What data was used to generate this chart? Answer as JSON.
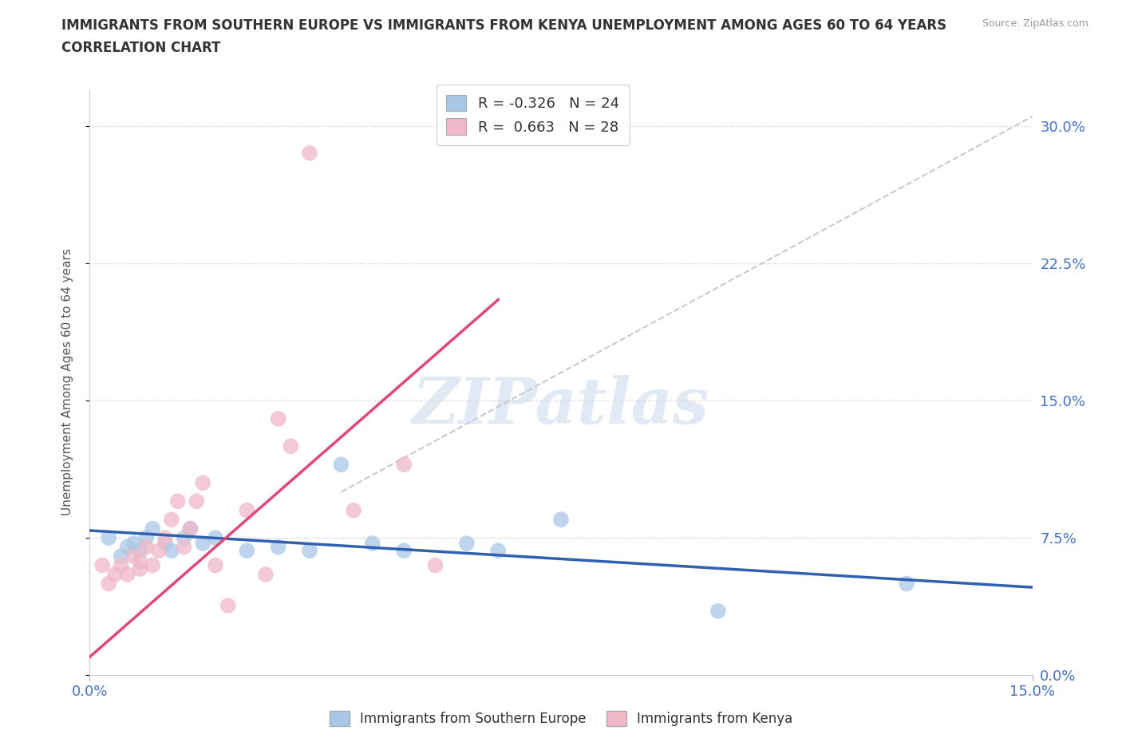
{
  "title_line1": "IMMIGRANTS FROM SOUTHERN EUROPE VS IMMIGRANTS FROM KENYA UNEMPLOYMENT AMONG AGES 60 TO 64 YEARS",
  "title_line2": "CORRELATION CHART",
  "source_text": "Source: ZipAtlas.com",
  "ylabel": "Unemployment Among Ages 60 to 64 years",
  "xlim": [
    0.0,
    0.15
  ],
  "ylim": [
    0.0,
    0.32
  ],
  "ytick_labels": [
    "0.0%",
    "7.5%",
    "15.0%",
    "22.5%",
    "30.0%"
  ],
  "ytick_values": [
    0.0,
    0.075,
    0.15,
    0.225,
    0.3
  ],
  "xtick_labels": [
    "0.0%",
    "15.0%"
  ],
  "xtick_values": [
    0.0,
    0.15
  ],
  "r_blue": -0.326,
  "n_blue": 24,
  "r_pink": 0.663,
  "n_pink": 28,
  "legend_label_blue": "Immigrants from Southern Europe",
  "legend_label_pink": "Immigrants from Kenya",
  "blue_scatter_color": "#a8c8e8",
  "pink_scatter_color": "#f0b8c8",
  "blue_line_color": "#3060b0",
  "pink_line_color": "#e04878",
  "diag_color": "#c8c8d8",
  "watermark": "ZIPatlas",
  "blue_scatter_x": [
    0.003,
    0.005,
    0.006,
    0.007,
    0.008,
    0.009,
    0.01,
    0.012,
    0.013,
    0.015,
    0.016,
    0.018,
    0.02,
    0.025,
    0.03,
    0.035,
    0.04,
    0.045,
    0.05,
    0.06,
    0.065,
    0.075,
    0.1,
    0.13
  ],
  "blue_scatter_y": [
    0.075,
    0.065,
    0.07,
    0.072,
    0.068,
    0.075,
    0.08,
    0.072,
    0.068,
    0.075,
    0.08,
    0.072,
    0.075,
    0.068,
    0.07,
    0.068,
    0.115,
    0.072,
    0.068,
    0.072,
    0.068,
    0.085,
    0.035,
    0.05
  ],
  "pink_scatter_x": [
    0.002,
    0.003,
    0.004,
    0.005,
    0.006,
    0.007,
    0.008,
    0.008,
    0.009,
    0.01,
    0.011,
    0.012,
    0.013,
    0.014,
    0.015,
    0.016,
    0.017,
    0.018,
    0.02,
    0.022,
    0.025,
    0.028,
    0.03,
    0.032,
    0.035,
    0.042,
    0.05,
    0.055
  ],
  "pink_scatter_y": [
    0.06,
    0.05,
    0.055,
    0.06,
    0.055,
    0.065,
    0.058,
    0.062,
    0.07,
    0.06,
    0.068,
    0.075,
    0.085,
    0.095,
    0.07,
    0.08,
    0.095,
    0.105,
    0.06,
    0.038,
    0.09,
    0.055,
    0.14,
    0.125,
    0.285,
    0.09,
    0.115,
    0.06
  ],
  "blue_line_x": [
    0.0,
    0.15
  ],
  "blue_line_y": [
    0.079,
    0.048
  ],
  "pink_line_x": [
    0.0,
    0.065
  ],
  "pink_line_y": [
    0.01,
    0.205
  ],
  "diag_line_x": [
    0.04,
    0.15
  ],
  "diag_line_y": [
    0.1,
    0.305
  ]
}
